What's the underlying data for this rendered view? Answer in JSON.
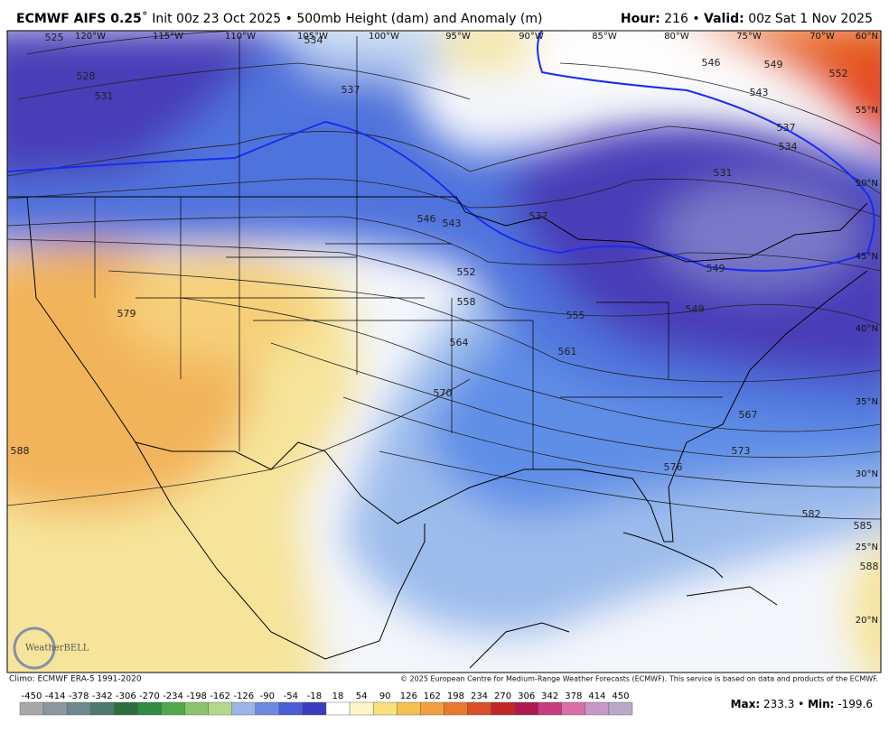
{
  "header": {
    "title_bold": "ECMWF AIFS 0.25",
    "title_rest": "˚ Init 00z 23 Oct 2025 • 500mb Height (dam) and Anomaly (m)",
    "hour_label": "Hour:",
    "hour": "216 •",
    "valid_label": "Valid:",
    "valid": "00z Sat 1 Nov 2025"
  },
  "map": {
    "longitudes": [
      "120°W",
      "115°W",
      "110°W",
      "105°W",
      "100°W",
      "95°W",
      "90°W",
      "85°W",
      "80°W",
      "75°W",
      "70°W"
    ],
    "latitudes": [
      "60°N",
      "55°N",
      "50°N",
      "45°N",
      "40°N",
      "35°N",
      "30°N",
      "25°N",
      "20°N"
    ],
    "contour_labels": [
      "525",
      "528",
      "531",
      "534",
      "537",
      "546",
      "549",
      "552",
      "543",
      "537",
      "534",
      "531",
      "537",
      "543",
      "546",
      "549",
      "552",
      "558",
      "555",
      "549",
      "564",
      "561",
      "579",
      "570",
      "567",
      "573",
      "576",
      "582",
      "585",
      "588",
      "588"
    ],
    "logo": "WeatherBELL"
  },
  "footer": {
    "climo": "Climo: ECMWF ERA-5 1991-2020",
    "copyright": "© 2025 European Centre for Medium-Range Weather Forecasts (ECMWF). This service is based on data and products of the ECMWF.",
    "colorbar": [
      "-450",
      "-414",
      "-378",
      "-342",
      "-306",
      "-270",
      "-234",
      "-198",
      "-162",
      "-126",
      "-90",
      "-54",
      "-18",
      "18",
      "54",
      "90",
      "126",
      "162",
      "198",
      "234",
      "270",
      "306",
      "342",
      "378",
      "414",
      "450"
    ],
    "max_label": "Max:",
    "max": "233.3 •",
    "min_label": "Min:",
    "min": "-199.6"
  }
}
